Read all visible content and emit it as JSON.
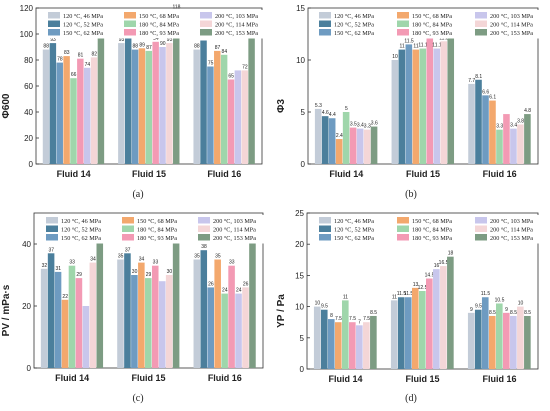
{
  "colors": [
    "#c3ccd8",
    "#4b7f9c",
    "#6e9bc1",
    "#f3a86d",
    "#9fd6ab",
    "#f39ab4",
    "#c8c6ec",
    "#f4d6d7",
    "#7d9c83"
  ],
  "chart_data": [
    {
      "type": "bar",
      "panel_label": "(a)",
      "ylabel": "Φ600",
      "ylim": [
        0,
        120
      ],
      "yticks": [
        0,
        20,
        40,
        60,
        80,
        100,
        120
      ],
      "categories": [
        "Fluid 14",
        "Fluid 15",
        "Fluid 16"
      ],
      "legend": {
        "columns": 3,
        "placement": "top"
      },
      "series": [
        {
          "name": "120 °C, 46 MPa",
          "values": [
            88,
            93,
            88
          ]
        },
        {
          "name": "120 °C, 52 MPa",
          "values": [
            93,
            97,
            95
          ]
        },
        {
          "name": "150 °C, 62 MPa",
          "values": [
            78,
            88,
            75
          ]
        },
        {
          "name": "150 °C, 68 MPa",
          "values": [
            83,
            89,
            87
          ]
        },
        {
          "name": "180 °C, 84 MPa",
          "values": [
            66,
            87,
            84
          ]
        },
        {
          "name": "180 °C, 93 MPa",
          "values": [
            81,
            94,
            65
          ]
        },
        {
          "name": "200 °C, 103 MPa",
          "values": [
            74,
            90,
            72
          ]
        },
        {
          "name": "200 °C, 114 MPa",
          "values": [
            82,
            93,
            72
          ]
        },
        {
          "name": "200 °C, 153 MPa",
          "values": [
            99,
            118,
            101
          ]
        }
      ],
      "data_labels": [
        [
          "88",
          "93",
          "78",
          "83",
          "66",
          "81",
          "74",
          "82",
          "99"
        ],
        [
          "93",
          "97",
          "88",
          "89",
          "87",
          "94",
          "90",
          "93",
          "118"
        ],
        [
          "88",
          "95",
          "75",
          "87",
          "84",
          "65",
          "",
          "72",
          "101"
        ]
      ],
      "caption": "(a)"
    },
    {
      "type": "bar",
      "panel_label": "(b)",
      "ylabel": "Φ3",
      "ylim": [
        0,
        15
      ],
      "yticks": [
        0,
        5,
        10,
        15
      ],
      "categories": [
        "Fluid 14",
        "Fluid 15",
        "Fluid 16"
      ],
      "legend": {
        "columns": 3,
        "placement": "top"
      },
      "series": [
        {
          "name": "120 °C, 46 MPa",
          "values": [
            5.3,
            10.0,
            7.7
          ]
        },
        {
          "name": "120 °C, 52 MPa",
          "values": [
            4.6,
            11.0,
            8.1
          ]
        },
        {
          "name": "150 °C, 62 MPa",
          "values": [
            4.4,
            11.5,
            6.6
          ]
        },
        {
          "name": "150 °C, 68 MPa",
          "values": [
            2.4,
            11.0,
            6.1
          ]
        },
        {
          "name": "180 °C, 84 MPa",
          "values": [
            5.0,
            11.1,
            3.3
          ]
        },
        {
          "name": "180 °C, 93 MPa",
          "values": [
            3.5,
            12.4,
            4.8
          ]
        },
        {
          "name": "200 °C, 103 MPa",
          "values": [
            3.4,
            11.1,
            3.4
          ]
        },
        {
          "name": "200 °C, 114 MPa",
          "values": [
            3.3,
            11.8,
            3.8
          ]
        },
        {
          "name": "200 °C, 153 MPa",
          "values": [
            3.6,
            13.3,
            4.8
          ]
        }
      ],
      "data_labels": [
        [
          "5.3",
          "4.6",
          "4.4",
          "2.4",
          "5",
          "3.5",
          "3.4",
          "3.3",
          "3.6"
        ],
        [
          "10",
          "11",
          "11.5",
          "11",
          "11.1",
          "12.4",
          "11.1",
          "11.8",
          "13.3"
        ],
        [
          "7.7",
          "8.1",
          "6.6",
          "6.1",
          "3.3",
          "",
          "3.4",
          "3.8",
          "4.8"
        ]
      ],
      "caption": "(b)"
    },
    {
      "type": "bar",
      "panel_label": "(c)",
      "ylabel": "PV / mPa·s",
      "ylim": [
        0,
        50
      ],
      "yticks": [
        0,
        20,
        40
      ],
      "categories": [
        "Fluid 14",
        "Fluid 15",
        "Fluid 16"
      ],
      "legend": {
        "columns": 3,
        "placement": "top"
      },
      "series": [
        {
          "name": "120 °C, 46 MPa",
          "values": [
            32,
            35,
            35
          ]
        },
        {
          "name": "120 °C, 52 MPa",
          "values": [
            37,
            37,
            38
          ]
        },
        {
          "name": "150 °C, 62 MPa",
          "values": [
            31,
            30,
            26
          ]
        },
        {
          "name": "150 °C, 68 MPa",
          "values": [
            22,
            34,
            35
          ]
        },
        {
          "name": "180 °C, 84 MPa",
          "values": [
            33,
            29,
            24
          ]
        },
        {
          "name": "180 °C, 93 MPa",
          "values": [
            29,
            33,
            33
          ]
        },
        {
          "name": "200 °C, 103 MPa",
          "values": [
            20,
            28,
            24
          ]
        },
        {
          "name": "200 °C, 114 MPa",
          "values": [
            34,
            30,
            26
          ]
        },
        {
          "name": "200 °C, 153 MPa",
          "values": [
            41,
            41,
            42
          ]
        }
      ],
      "data_labels": [
        [
          "32",
          "37",
          "31",
          "22",
          "33",
          "29",
          "",
          "34",
          "41"
        ],
        [
          "35",
          "37",
          "30",
          "34",
          "29",
          "33",
          "",
          "30",
          "41"
        ],
        [
          "35",
          "38",
          "26",
          "35",
          "24",
          "33",
          "24",
          "26",
          "42"
        ]
      ],
      "caption": "(c)"
    },
    {
      "type": "bar",
      "panel_label": "(d)",
      "ylabel": "YP / Pa",
      "ylim": [
        0,
        25
      ],
      "yticks": [
        0,
        5,
        10,
        15,
        20,
        25
      ],
      "categories": [
        "Fluid 14",
        "Fluid 15",
        "Fluid 16"
      ],
      "legend": {
        "columns": 3,
        "placement": "top"
      },
      "series": [
        {
          "name": "120 °C, 46 MPa",
          "values": [
            10,
            11,
            9
          ]
        },
        {
          "name": "120 °C, 52 MPa",
          "values": [
            9.5,
            11.5,
            9.5
          ]
        },
        {
          "name": "150 °C, 62 MPa",
          "values": [
            8,
            11.5,
            11.5
          ]
        },
        {
          "name": "150 °C, 68 MPa",
          "values": [
            7.5,
            13,
            8.5
          ]
        },
        {
          "name": "180 °C, 84 MPa",
          "values": [
            11,
            12.5,
            10.5
          ]
        },
        {
          "name": "180 °C, 93 MPa",
          "values": [
            7.5,
            14.5,
            9
          ]
        },
        {
          "name": "200 °C, 103 MPa",
          "values": [
            7,
            16,
            8.5
          ]
        },
        {
          "name": "200 °C, 114 MPa",
          "values": [
            7.5,
            16.5,
            10
          ]
        },
        {
          "name": "200 °C, 153 MPa",
          "values": [
            8.5,
            18,
            8.5
          ]
        }
      ],
      "data_labels": [
        [
          "10",
          "9.5",
          "8",
          "7.5",
          "11",
          "7.5",
          "7",
          "7.5",
          "8.5"
        ],
        [
          "11",
          "11.5",
          "11.5",
          "13",
          "12.5",
          "14.5",
          "16",
          "16.5",
          "18"
        ],
        [
          "9",
          "9.5",
          "11.5",
          "8.5",
          "10.5",
          "9",
          "8.5",
          "10",
          "8.5"
        ]
      ],
      "caption": "(d)"
    }
  ]
}
